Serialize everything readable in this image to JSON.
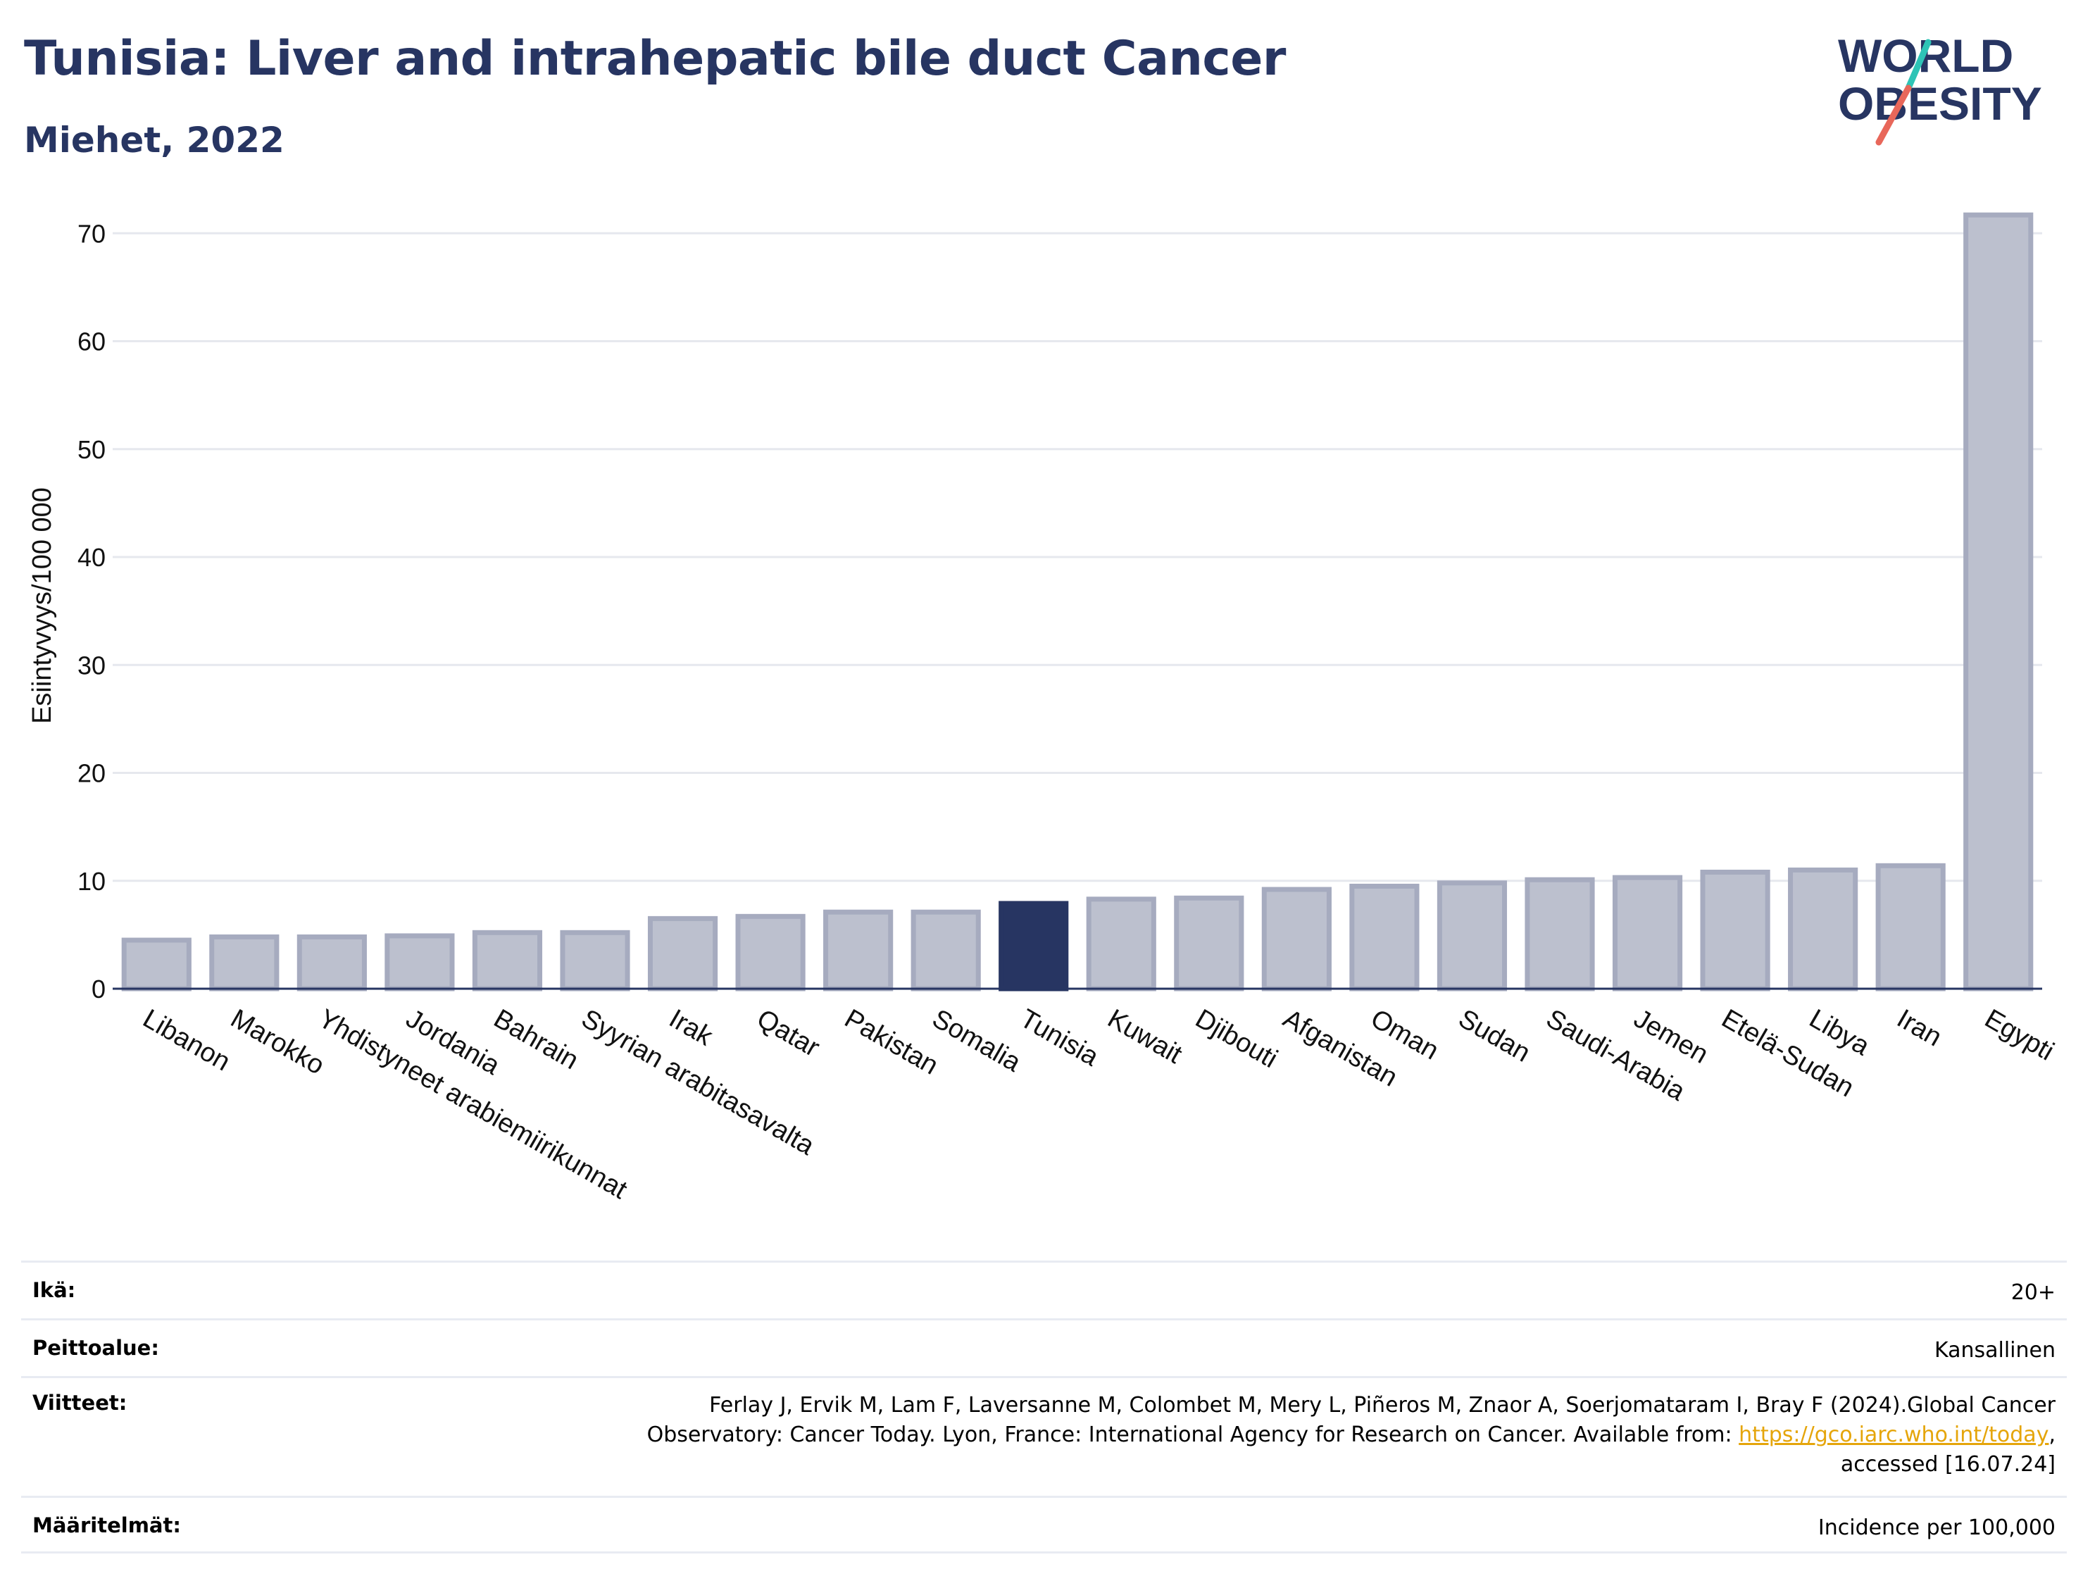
{
  "header": {
    "title": "Tunisia: Liver and intrahepatic bile duct Cancer",
    "subtitle": "Miehet, 2022",
    "logo_line1": "WORLD",
    "logo_line2": "OBESITY"
  },
  "colors": {
    "title": "#273562",
    "bar": "#bcc0ce",
    "bar_border": "#a6abbf",
    "highlight": "#273562",
    "grid": "#e6e8ee",
    "link": "#e5a50a",
    "logo_teal": "#2ec4b6",
    "logo_coral": "#e8675a"
  },
  "chart_data": {
    "type": "bar",
    "categories": [
      "Libanon",
      "Marokko",
      "Yhdistyneet arabiemiirikunnat",
      "Jordania",
      "Bahrain",
      "Syyrian arabitasavalta",
      "Irak",
      "Qatar",
      "Pakistan",
      "Somalia",
      "Tunisia",
      "Kuwait",
      "Djibouti",
      "Afganistan",
      "Oman",
      "Sudan",
      "Saudi-Arabia",
      "Jemen",
      "Etelä-Sudan",
      "Libya",
      "Iran",
      "Egypti"
    ],
    "values": [
      4.5,
      4.8,
      4.8,
      4.9,
      5.2,
      5.2,
      6.5,
      6.7,
      7.1,
      7.1,
      7.9,
      8.3,
      8.4,
      9.2,
      9.5,
      9.8,
      10.1,
      10.3,
      10.8,
      11.0,
      11.4,
      71.7
    ],
    "highlight": "Tunisia",
    "ylabel": "Esiintyvyys/100 000",
    "yticks": [
      0,
      10,
      20,
      30,
      40,
      50,
      60,
      70
    ],
    "ylim": [
      0,
      74
    ],
    "grid": true
  },
  "meta": [
    {
      "label": "Ikä:",
      "value": "20+"
    },
    {
      "label": "Peittoalue:",
      "value": "Kansallinen"
    },
    {
      "label": "Viitteet:",
      "value_lines": [
        "Ferlay J, Ervik M, Lam F, Laversanne M, Colombet M, Mery L, Piñeros M, Znaor A, Soerjomataram I, Bray F (2024).Global Cancer",
        "Observatory: Cancer Today. Lyon, France: International Agency for Research on Cancer. Available from: ",
        "https://gco.iarc.who.int/today",
        ",",
        "accessed [16.07.24]"
      ]
    },
    {
      "label": "Määritelmät:",
      "value": "Incidence per 100,000"
    }
  ]
}
